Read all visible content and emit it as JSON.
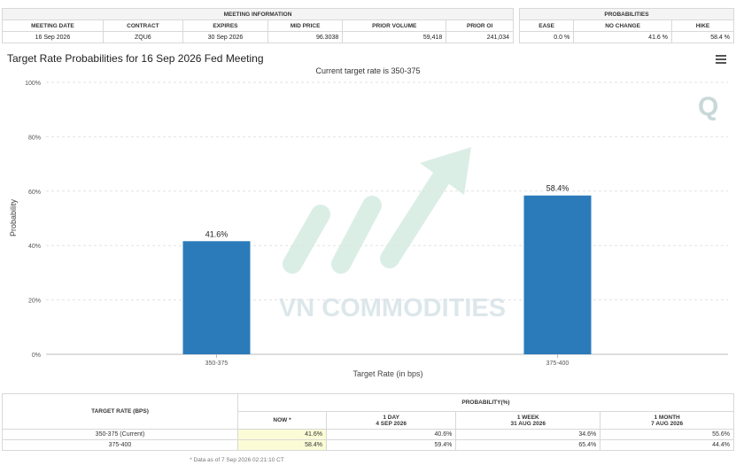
{
  "meeting_info": {
    "heading": "MEETING INFORMATION",
    "columns": [
      "MEETING DATE",
      "CONTRACT",
      "EXPIRES",
      "MID PRICE",
      "PRIOR VOLUME",
      "PRIOR OI"
    ],
    "row": [
      "16 Sep 2026",
      "ZQU6",
      "30 Sep 2026",
      "96.3038",
      "59,418",
      "241,034"
    ]
  },
  "probabilities": {
    "heading": "PROBABILITIES",
    "columns": [
      "EASE",
      "NO CHANGE",
      "HIKE"
    ],
    "row": [
      "0.0 %",
      "41.6 %",
      "58.4 %"
    ]
  },
  "chart_data": {
    "type": "bar",
    "title": "Target Rate Probabilities for 16 Sep 2026 Fed Meeting",
    "subtitle": "Current target rate is 350-375",
    "xlabel": "Target Rate (in bps)",
    "ylabel": "Probability",
    "categories": [
      "350-375",
      "375-400"
    ],
    "values": [
      41.6,
      58.4
    ],
    "value_labels": [
      "41.6%",
      "58.4%"
    ],
    "ylim": [
      0,
      100
    ],
    "yticks": [
      0,
      20,
      40,
      60,
      80,
      100
    ],
    "ytick_labels": [
      "0%",
      "20%",
      "40%",
      "60%",
      "80%",
      "100%"
    ],
    "bar_color": "#2b7bba",
    "grid": "horizontal-dashed"
  },
  "watermark": {
    "text": "VN COMMODITIES",
    "logo_letter": "Q"
  },
  "prob_table": {
    "target_header": "TARGET RATE (BPS)",
    "prob_header": "PROBABILITY(%)",
    "cols": [
      {
        "line1": "NOW *",
        "line2": ""
      },
      {
        "line1": "1 DAY",
        "line2": "4 SEP 2026"
      },
      {
        "line1": "1 WEEK",
        "line2": "31 AUG 2026"
      },
      {
        "line1": "1 MONTH",
        "line2": "7 AUG 2026"
      }
    ],
    "rows": [
      {
        "label": "350-375 (Current)",
        "now": "41.6%",
        "day": "40.6%",
        "week": "34.6%",
        "month": "55.6%"
      },
      {
        "label": "375-400",
        "now": "58.4%",
        "day": "59.4%",
        "week": "65.4%",
        "month": "44.4%"
      }
    ],
    "footnote": "* Data as of 7 Sep 2026 02:21:10 CT"
  }
}
